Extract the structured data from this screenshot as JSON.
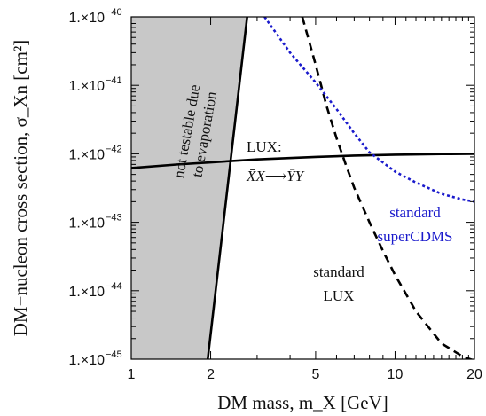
{
  "chart_data": {
    "type": "line",
    "x_scale": "log",
    "y_scale": "log",
    "xlim": [
      1,
      20
    ],
    "ylim": [
      1e-45,
      1e-40
    ],
    "xlabel": "DM mass, m_X [GeV]",
    "ylabel": "DM−nucleon cross section, σ_Xn [cm²]",
    "x_ticks": [
      {
        "value": 1,
        "label": "1"
      },
      {
        "value": 2,
        "label": "2"
      },
      {
        "value": 5,
        "label": "5"
      },
      {
        "value": 10,
        "label": "10"
      },
      {
        "value": 20,
        "label": "20"
      }
    ],
    "y_ticks": [
      {
        "value": 1e-45,
        "base": "1.×10",
        "exp": "−45"
      },
      {
        "value": 1e-44,
        "base": "1.×10",
        "exp": "−44"
      },
      {
        "value": 1e-43,
        "base": "1.×10",
        "exp": "−43"
      },
      {
        "value": 1e-42,
        "base": "1.×10",
        "exp": "−42"
      },
      {
        "value": 1e-41,
        "base": "1.×10",
        "exp": "−41"
      },
      {
        "value": 1e-40,
        "base": "1.×10",
        "exp": "−40"
      }
    ],
    "grid": false,
    "shaded_region": {
      "label_line1": "not testable due",
      "label_line2": "to evaporation",
      "color": "#c8c8c8",
      "boundary": [
        [
          1,
          1e-40
        ],
        [
          2.75,
          1e-40
        ],
        [
          1.95,
          1e-45
        ],
        [
          1,
          1e-45
        ]
      ]
    },
    "series": [
      {
        "name": "LUX: X̄X→ȲY",
        "style": "solid",
        "color": "#000000",
        "points": [
          [
            1,
            6.2e-43
          ],
          [
            1.5,
            7e-43
          ],
          [
            2,
            7.5e-43
          ],
          [
            3,
            8.3e-43
          ],
          [
            5,
            9e-43
          ],
          [
            7,
            9.4e-43
          ],
          [
            10,
            9.7e-43
          ],
          [
            15,
            9.9e-43
          ],
          [
            20,
            1e-42
          ]
        ]
      },
      {
        "name": "evaporation boundary",
        "style": "solid",
        "color": "#000000",
        "points": [
          [
            1.95,
            1e-45
          ],
          [
            2.75,
            1e-40
          ]
        ]
      },
      {
        "name": "standard LUX",
        "style": "dashed",
        "color": "#000000",
        "points": [
          [
            4.45,
            1e-40
          ],
          [
            5.0,
            2e-41
          ],
          [
            5.5,
            5e-42
          ],
          [
            6.0,
            1.7e-42
          ],
          [
            6.5,
            7e-43
          ],
          [
            7.0,
            3.2e-43
          ],
          [
            8.0,
            1e-43
          ],
          [
            9.0,
            3.8e-44
          ],
          [
            10.0,
            1.7e-44
          ],
          [
            12.0,
            5e-45
          ],
          [
            15.0,
            1.7e-45
          ],
          [
            18.0,
            1.1e-45
          ],
          [
            20.0,
            9.5e-46
          ]
        ]
      },
      {
        "name": "standard superCDMS",
        "style": "dotted",
        "color": "#1a1acc",
        "points": [
          [
            3.2,
            1e-40
          ],
          [
            4.0,
            3e-41
          ],
          [
            5.0,
            1.1e-41
          ],
          [
            6.0,
            4.5e-42
          ],
          [
            7.0,
            2e-42
          ],
          [
            8.0,
            1.05e-42
          ],
          [
            10.0,
            5.5e-43
          ],
          [
            12.0,
            3.8e-43
          ],
          [
            15.0,
            2.6e-43
          ],
          [
            18.0,
            2.15e-43
          ],
          [
            20.0,
            2e-43
          ]
        ]
      }
    ],
    "annotations": [
      {
        "id": "lux-solid",
        "line1": "LUX:",
        "line2": "X̄X⟶ȲY"
      },
      {
        "id": "std-cdms",
        "line1": "standard",
        "line2": "superCDMS",
        "color": "#1a1acc"
      },
      {
        "id": "std-lux",
        "line1": "standard",
        "line2": "LUX"
      }
    ]
  }
}
